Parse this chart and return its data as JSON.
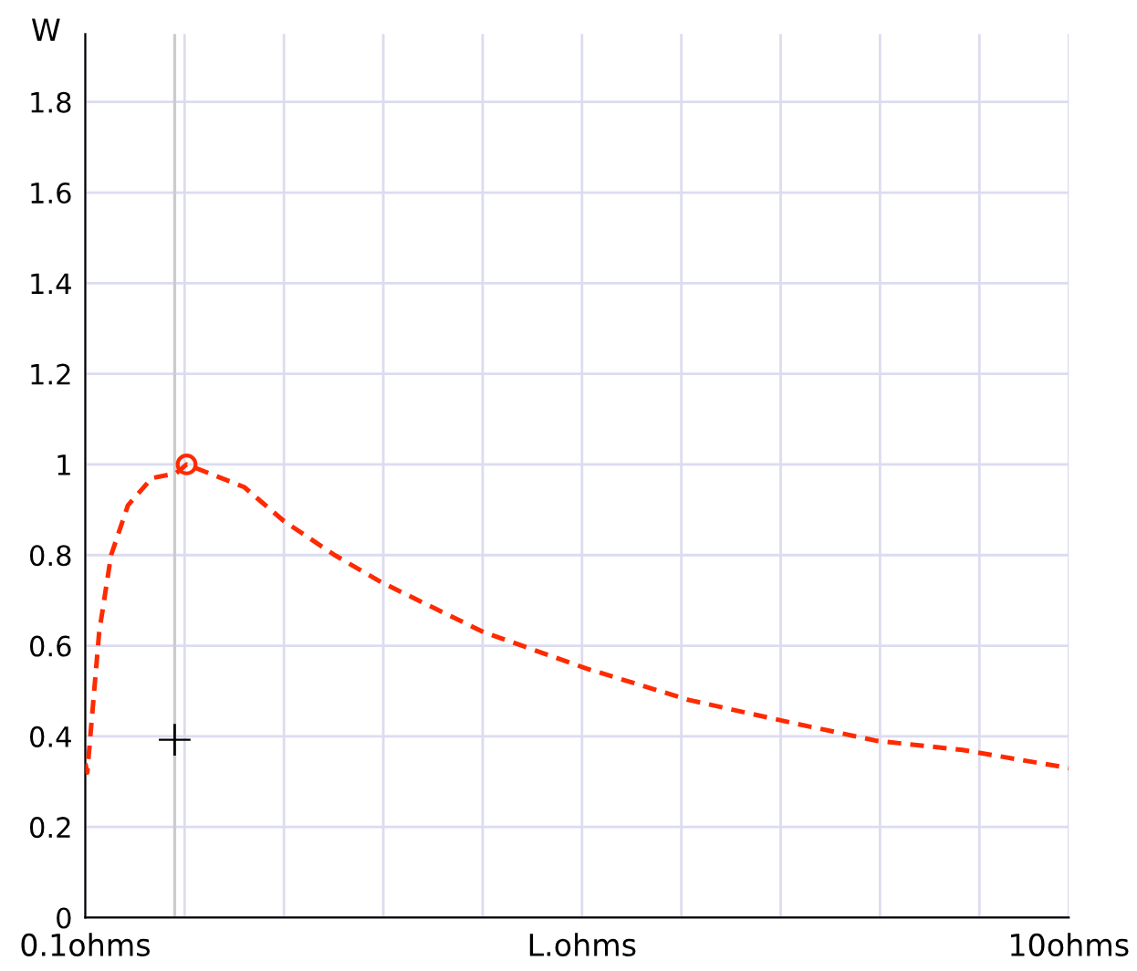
{
  "chart_data": {
    "type": "line",
    "ylabel": "W",
    "x": [
      0.1,
      0.12,
      0.24,
      0.36,
      0.53,
      0.77,
      1.01,
      1.12,
      1.7,
      2.1,
      2.61,
      3.08,
      3.64,
      4.11,
      5.14,
      6.18,
      7.21,
      8.07,
      8.93,
      10.0
    ],
    "series": [
      {
        "color": "#ff2a00",
        "line_style": "dashed",
        "marker": "none",
        "values": [
          0.34,
          0.32,
          0.63,
          0.8,
          0.91,
          0.97,
          0.98,
          1.0,
          0.95,
          0.875,
          0.8,
          0.74,
          0.68,
          0.63,
          0.55,
          0.48,
          0.43,
          0.39,
          0.37,
          0.33
        ]
      },
      {
        "type": "scatter",
        "color": "#ff2a00",
        "marker": "circle",
        "x": [
          1.12
        ],
        "values": [
          1.0
        ]
      }
    ],
    "annotations": [
      {
        "text": "+",
        "x": 1.0,
        "y": 0.4
      }
    ],
    "xlim": [
      0.1,
      10
    ],
    "ylim": [
      0,
      1.95
    ],
    "xticks": [
      {
        "value": 0.1,
        "label": "0.1ohms"
      },
      {
        "value": 1.1,
        "label": null
      },
      {
        "value": 2.1,
        "label": null
      },
      {
        "value": 3.1,
        "label": null
      },
      {
        "value": 4.1,
        "label": null
      },
      {
        "value": 5.1,
        "label": "L.ohms"
      },
      {
        "value": 6.1,
        "label": null
      },
      {
        "value": 7.1,
        "label": null
      },
      {
        "value": 8.1,
        "label": null
      },
      {
        "value": 9.1,
        "label": null
      },
      {
        "value": 10,
        "label": "10ohms"
      }
    ],
    "yticks": [
      0,
      0.2,
      0.4,
      0.6,
      0.8,
      1,
      1.2,
      1.4,
      1.6,
      1.8
    ],
    "ref_lines": [
      {
        "axis": "x",
        "value": 1.0,
        "color": "#cccccc"
      }
    ],
    "grid": true,
    "legend": false
  }
}
